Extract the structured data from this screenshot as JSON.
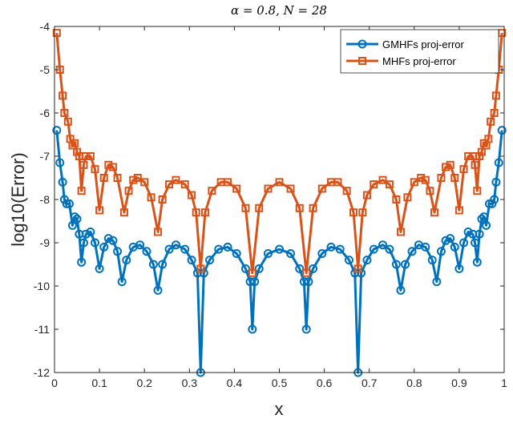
{
  "chart_data": {
    "type": "line",
    "title": "α = 0.8,  N = 28",
    "xlabel": "x",
    "ylabel": "log10(Error)",
    "xlim": [
      0,
      1
    ],
    "ylim": [
      -12,
      -4
    ],
    "xticks": [
      "0",
      "0.1",
      "0.2",
      "0.3",
      "0.4",
      "0.5",
      "0.6",
      "0.7",
      "0.8",
      "0.9",
      "1"
    ],
    "yticks": [
      "-4",
      "-5",
      "-6",
      "-7",
      "-8",
      "-9",
      "-10",
      "-11",
      "-12"
    ],
    "grid": false,
    "legend_position": "top-right",
    "series": [
      {
        "name": "GMHFs proj-error",
        "color": "#0072BD",
        "marker": "circle",
        "x": [
          0.005,
          0.012,
          0.018,
          0.022,
          0.027,
          0.033,
          0.04,
          0.045,
          0.05,
          0.055,
          0.06,
          0.065,
          0.07,
          0.08,
          0.09,
          0.1,
          0.11,
          0.12,
          0.13,
          0.14,
          0.15,
          0.16,
          0.175,
          0.19,
          0.205,
          0.22,
          0.23,
          0.24,
          0.255,
          0.27,
          0.29,
          0.305,
          0.318,
          0.325,
          0.332,
          0.345,
          0.365,
          0.385,
          0.405,
          0.425,
          0.435,
          0.44,
          0.445,
          0.455,
          0.475,
          0.5,
          0.525,
          0.545,
          0.555,
          0.56,
          0.565,
          0.575,
          0.595,
          0.615,
          0.635,
          0.655,
          0.668,
          0.675,
          0.682,
          0.695,
          0.71,
          0.73,
          0.745,
          0.76,
          0.77,
          0.78,
          0.795,
          0.81,
          0.825,
          0.84,
          0.85,
          0.86,
          0.87,
          0.88,
          0.89,
          0.9,
          0.91,
          0.92,
          0.93,
          0.935,
          0.94,
          0.945,
          0.95,
          0.955,
          0.96,
          0.967,
          0.973,
          0.978,
          0.982,
          0.988,
          0.995
        ],
        "y": [
          -6.4,
          -7.15,
          -7.6,
          -8.0,
          -8.1,
          -8.1,
          -8.6,
          -8.4,
          -8.45,
          -8.8,
          -9.45,
          -9.0,
          -8.8,
          -8.75,
          -9.0,
          -9.6,
          -9.1,
          -8.9,
          -8.95,
          -9.2,
          -9.9,
          -9.4,
          -9.1,
          -9.05,
          -9.2,
          -9.5,
          -10.1,
          -9.5,
          -9.15,
          -9.05,
          -9.15,
          -9.4,
          -9.7,
          -12.0,
          -9.7,
          -9.4,
          -9.15,
          -9.1,
          -9.25,
          -9.6,
          -9.9,
          -11.0,
          -9.9,
          -9.6,
          -9.25,
          -9.15,
          -9.25,
          -9.6,
          -9.9,
          -11.0,
          -9.9,
          -9.6,
          -9.25,
          -9.1,
          -9.15,
          -9.4,
          -9.7,
          -12.0,
          -9.7,
          -9.4,
          -9.15,
          -9.05,
          -9.15,
          -9.5,
          -10.1,
          -9.5,
          -9.2,
          -9.05,
          -9.1,
          -9.4,
          -9.9,
          -9.2,
          -8.95,
          -8.9,
          -9.1,
          -9.6,
          -9.0,
          -8.75,
          -8.8,
          -9.0,
          -9.45,
          -8.8,
          -8.45,
          -8.4,
          -8.6,
          -8.1,
          -8.1,
          -8.0,
          -7.6,
          -7.15,
          -6.4
        ]
      },
      {
        "name": "MHFs proj-error",
        "color": "#D95319",
        "marker": "square",
        "x": [
          0.005,
          0.012,
          0.018,
          0.022,
          0.03,
          0.035,
          0.04,
          0.045,
          0.05,
          0.055,
          0.06,
          0.065,
          0.07,
          0.08,
          0.09,
          0.1,
          0.11,
          0.12,
          0.13,
          0.14,
          0.155,
          0.165,
          0.175,
          0.185,
          0.2,
          0.215,
          0.23,
          0.24,
          0.255,
          0.27,
          0.29,
          0.305,
          0.315,
          0.325,
          0.335,
          0.35,
          0.37,
          0.385,
          0.405,
          0.425,
          0.44,
          0.455,
          0.475,
          0.5,
          0.525,
          0.545,
          0.56,
          0.575,
          0.595,
          0.615,
          0.63,
          0.65,
          0.665,
          0.675,
          0.685,
          0.695,
          0.71,
          0.73,
          0.745,
          0.76,
          0.77,
          0.785,
          0.8,
          0.815,
          0.825,
          0.835,
          0.845,
          0.86,
          0.87,
          0.88,
          0.89,
          0.9,
          0.91,
          0.92,
          0.93,
          0.935,
          0.94,
          0.945,
          0.95,
          0.955,
          0.96,
          0.965,
          0.97,
          0.978,
          0.982,
          0.988,
          0.995
        ],
        "y": [
          -4.15,
          -5.0,
          -5.6,
          -6.0,
          -6.2,
          -6.6,
          -6.75,
          -6.7,
          -6.9,
          -7.0,
          -7.8,
          -7.2,
          -7.0,
          -7.0,
          -7.3,
          -8.25,
          -7.5,
          -7.2,
          -7.25,
          -7.5,
          -8.3,
          -7.8,
          -7.55,
          -7.5,
          -7.6,
          -7.95,
          -8.75,
          -8.0,
          -7.65,
          -7.55,
          -7.65,
          -7.9,
          -8.3,
          -9.6,
          -8.3,
          -7.8,
          -7.6,
          -7.6,
          -7.75,
          -8.2,
          -9.7,
          -8.2,
          -7.75,
          -7.6,
          -7.75,
          -8.2,
          -9.7,
          -8.2,
          -7.75,
          -7.6,
          -7.6,
          -7.8,
          -8.3,
          -9.6,
          -8.3,
          -7.9,
          -7.65,
          -7.55,
          -7.65,
          -8.0,
          -8.75,
          -7.95,
          -7.6,
          -7.5,
          -7.55,
          -7.8,
          -8.3,
          -7.5,
          -7.25,
          -7.2,
          -7.5,
          -8.25,
          -7.3,
          -7.0,
          -7.0,
          -7.2,
          -7.8,
          -7.0,
          -6.9,
          -6.7,
          -6.75,
          -6.6,
          -6.2,
          -6.0,
          -5.6,
          -5.0,
          -4.15
        ]
      }
    ]
  }
}
